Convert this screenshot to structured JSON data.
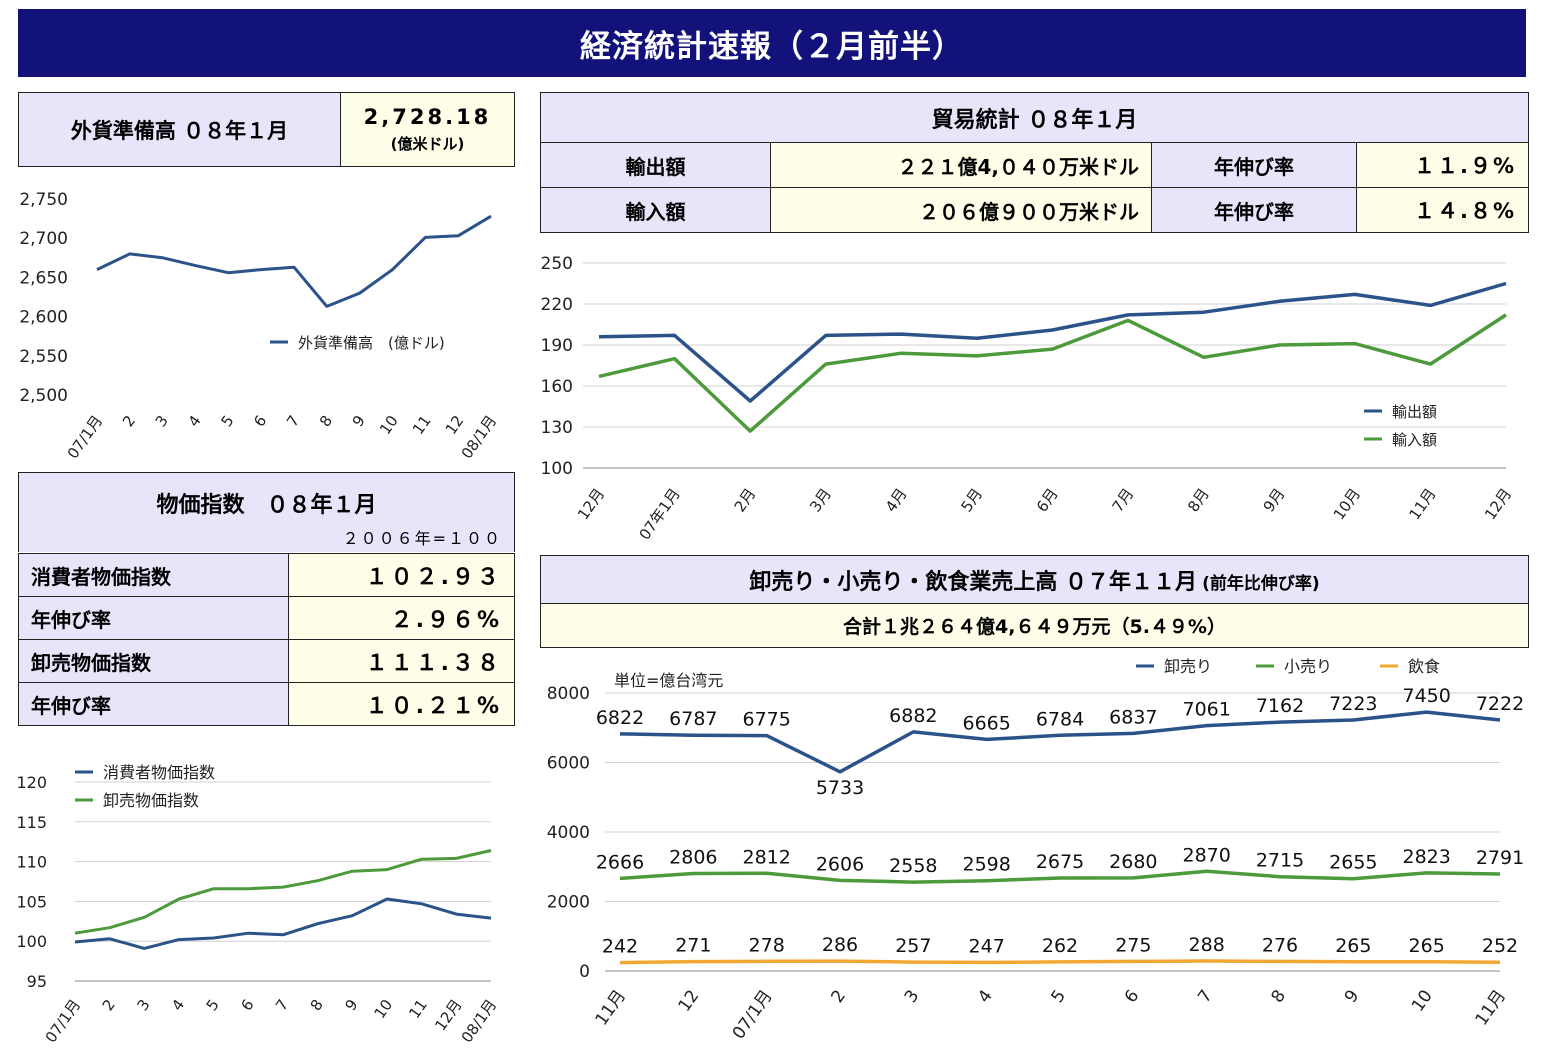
{
  "header": {
    "title": "経済統計速報（２月前半）"
  },
  "forex": {
    "label": "外貨準備高 ０８年１月",
    "value": "2,728.18",
    "unit": "(億米ドル)"
  },
  "trade": {
    "title": "貿易統計 ０８年１月",
    "rows": [
      {
        "label": "輸出額",
        "value": "２２１億4,０４０万米ドル",
        "growth_label": "年伸び率",
        "growth": "１１.９%"
      },
      {
        "label": "輸入額",
        "value": "２０６億９００万米ドル",
        "growth_label": "年伸び率",
        "growth": "１４.８%"
      }
    ]
  },
  "prices": {
    "title": "物価指数　０８年１月",
    "base": "２００６年=１００",
    "rows": [
      {
        "label": "消費者物価指数",
        "value": "１０２.９３"
      },
      {
        "label": "年伸び率",
        "value": "２.９６%"
      },
      {
        "label": "卸売物価指数",
        "value": "１１１.３８"
      },
      {
        "label": "年伸び率",
        "value": "１０.２１%"
      }
    ]
  },
  "sales": {
    "title": "卸売り・小売り・飲食業売上高 ０７年１１月",
    "title_note": "(前年比伸び率)",
    "total": "合計１兆２６４億4,６４９万元（5.４９%）"
  },
  "chart_data": [
    {
      "id": "forex",
      "type": "line",
      "categories": [
        "07/1月",
        "2",
        "3",
        "4",
        "5",
        "6",
        "7",
        "8",
        "9",
        "10",
        "11",
        "12",
        "08/1月"
      ],
      "series": [
        {
          "name": "外貨準備高　(億ドル)",
          "color": "#2b5289",
          "values": [
            2660,
            2680,
            2675,
            2665,
            2656,
            2660,
            2663,
            2613,
            2630,
            2660,
            2701,
            2703,
            2728
          ]
        }
      ],
      "ylim": [
        2500,
        2750
      ],
      "yticks": [
        "2,500",
        "2,550",
        "2,600",
        "2,650",
        "2,700",
        "2,750"
      ],
      "grid": false,
      "legend": "inside-lower-right"
    },
    {
      "id": "trade",
      "type": "line",
      "categories": [
        "12月",
        "07年1月",
        "2月",
        "3月",
        "4月",
        "5月",
        "6月",
        "7月",
        "8月",
        "9月",
        "10月",
        "11月",
        "12月"
      ],
      "series": [
        {
          "name": "輸出額",
          "color": "#2b5289",
          "values": [
            196,
            197,
            149,
            197,
            198,
            195,
            201,
            212,
            214,
            222,
            227,
            219,
            235
          ]
        },
        {
          "name": "輸入額",
          "color": "#4d9a3c",
          "values": [
            167,
            180,
            127,
            176,
            184,
            182,
            187,
            208,
            181,
            190,
            191,
            176,
            212
          ]
        }
      ],
      "ylim": [
        100,
        250
      ],
      "yticks": [
        "100",
        "130",
        "160",
        "190",
        "220",
        "250"
      ],
      "grid": true,
      "legend": "inside-lower-right"
    },
    {
      "id": "prices",
      "type": "line",
      "categories": [
        "07/1月",
        "2",
        "3",
        "4",
        "5",
        "6",
        "7",
        "8",
        "9",
        "10",
        "11",
        "12月",
        "08/1月"
      ],
      "series": [
        {
          "name": "消費者物価指数",
          "color": "#2b5289",
          "values": [
            99.9,
            100.3,
            99.1,
            100.2,
            100.4,
            101.0,
            100.8,
            102.2,
            103.2,
            105.3,
            104.7,
            103.4,
            102.9
          ]
        },
        {
          "name": "卸売物価指数",
          "color": "#4d9a3c",
          "values": [
            101.0,
            101.7,
            103.0,
            105.3,
            106.6,
            106.6,
            106.8,
            107.6,
            108.8,
            109.0,
            110.3,
            110.4,
            111.4
          ]
        }
      ],
      "ylim": [
        95,
        120
      ],
      "yticks": [
        "95",
        "100",
        "105",
        "110",
        "115",
        "120"
      ],
      "grid": true,
      "legend": "inside-top-left"
    },
    {
      "id": "sales",
      "type": "line",
      "unit_note": "単位=億台湾元",
      "categories": [
        "11月",
        "12",
        "07/1月",
        "2",
        "3",
        "4",
        "5",
        "6",
        "7",
        "8",
        "9",
        "10",
        "11月"
      ],
      "series": [
        {
          "name": "卸売り",
          "color": "#2b5289",
          "values": [
            6822,
            6787,
            6775,
            5733,
            6882,
            6665,
            6784,
            6837,
            7061,
            7162,
            7223,
            7450,
            7222
          ]
        },
        {
          "name": "小売り",
          "color": "#4d9a3c",
          "values": [
            2666,
            2806,
            2812,
            2606,
            2558,
            2598,
            2675,
            2680,
            2870,
            2715,
            2655,
            2823,
            2791
          ]
        },
        {
          "name": "飲食",
          "color": "#f2a735",
          "values": [
            242,
            271,
            278,
            286,
            257,
            247,
            262,
            275,
            288,
            276,
            265,
            265,
            252
          ]
        }
      ],
      "ylim": [
        0,
        8000
      ],
      "yticks": [
        "0",
        "2000",
        "4000",
        "6000",
        "8000"
      ],
      "grid": true,
      "data_labels": true,
      "legend": "top-right"
    }
  ]
}
